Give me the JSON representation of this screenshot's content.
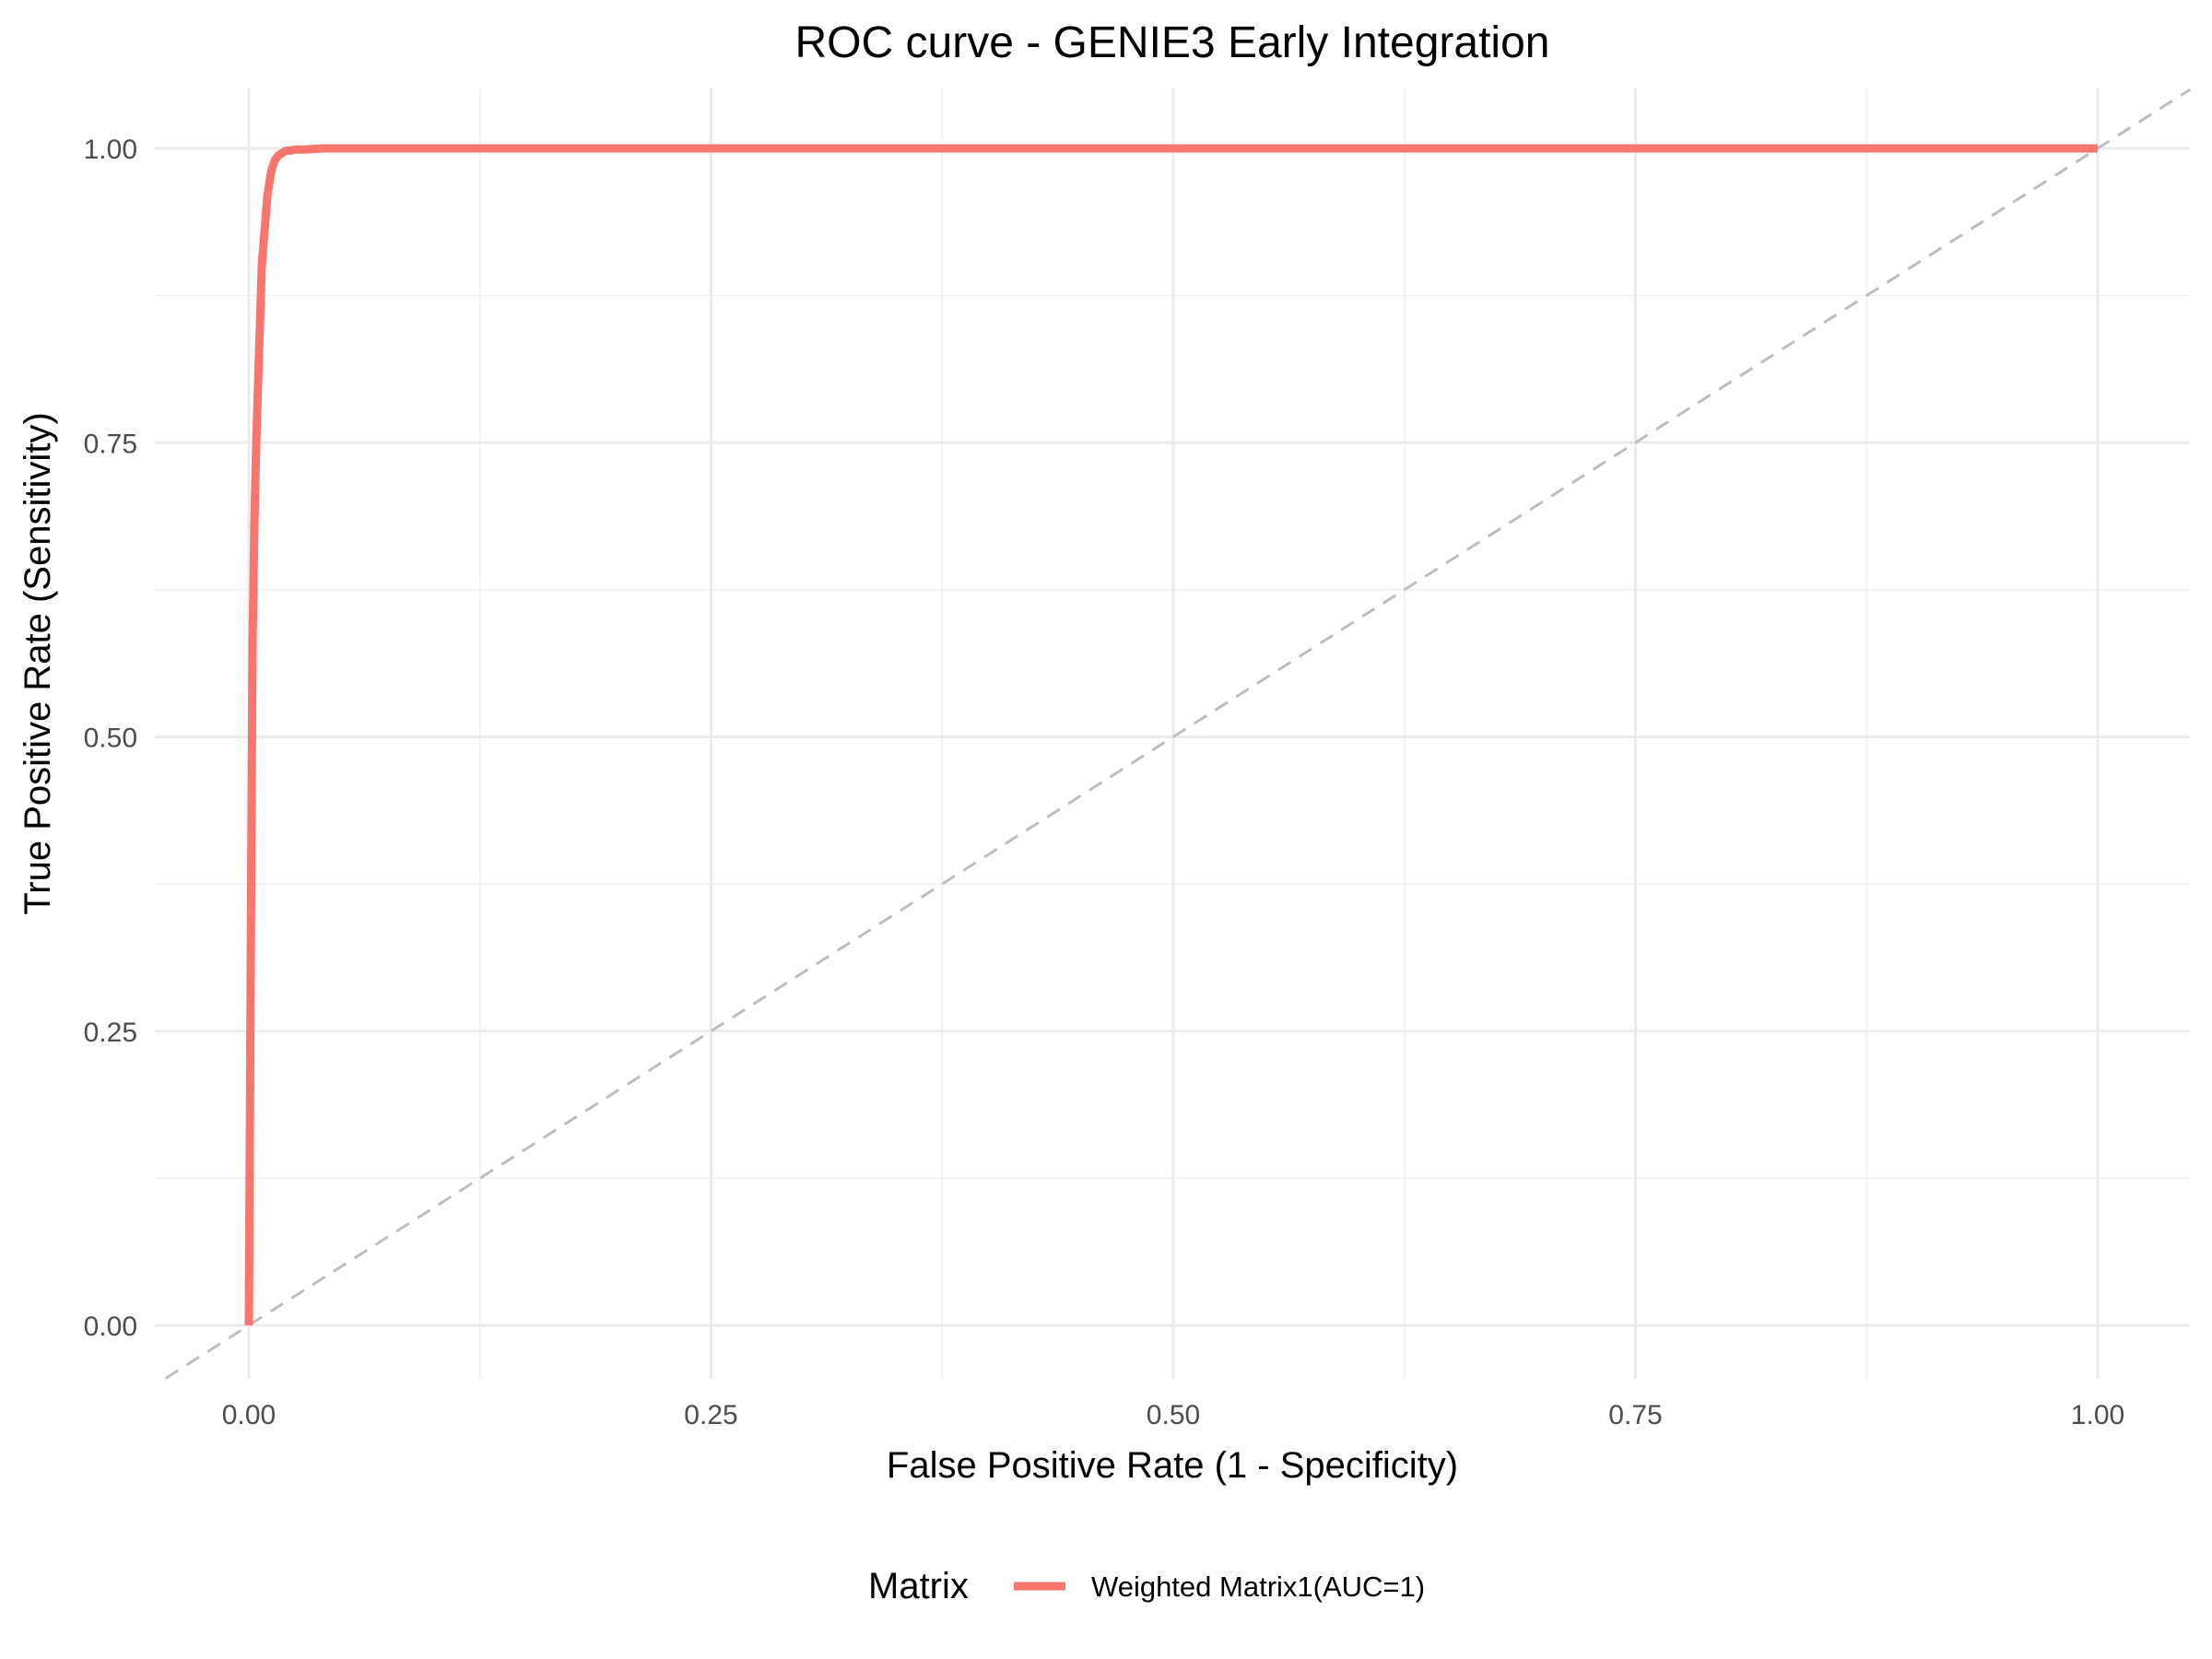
{
  "chart_data": {
    "type": "line",
    "title": "ROC curve - GENIE3 Early Integration",
    "xlabel": "False Positive Rate (1 - Specificity)",
    "ylabel": "True Positive Rate (Sensitivity)",
    "xlim": [
      -0.045,
      1.05
    ],
    "ylim": [
      -0.045,
      1.05
    ],
    "x_ticks": [
      0,
      0.25,
      0.5,
      0.75,
      1
    ],
    "x_tick_labels": [
      "0.00",
      "0.25",
      "0.50",
      "0.75",
      "1.00"
    ],
    "y_ticks": [
      0,
      0.25,
      0.5,
      0.75,
      1
    ],
    "y_tick_labels": [
      "0.00",
      "0.25",
      "0.50",
      "0.75",
      "1.00"
    ],
    "grid": true,
    "legend": {
      "position": "bottom",
      "title": "Matrix"
    },
    "series": [
      {
        "name": "Weighted Matrix1(AUC=1)",
        "color": "#f8766d",
        "x": [
          0,
          0.0005,
          0.001,
          0.0015,
          0.002,
          0.003,
          0.004,
          0.005,
          0.006,
          0.007,
          0.008,
          0.009,
          0.01,
          0.011,
          0.012,
          0.014,
          0.016,
          0.018,
          0.02,
          0.022,
          0.025,
          0.03,
          0.035,
          0.04,
          0.045,
          1
        ],
        "y": [
          0,
          0.15,
          0.3,
          0.45,
          0.58,
          0.68,
          0.75,
          0.8,
          0.85,
          0.9,
          0.92,
          0.94,
          0.96,
          0.97,
          0.98,
          0.99,
          0.994,
          0.996,
          0.998,
          0.998,
          0.999,
          0.999,
          0.9995,
          1,
          1,
          1
        ]
      },
      {
        "name": "",
        "color": "#bebebe",
        "dashed": true,
        "x": [
          -0.045,
          1.05
        ],
        "y": [
          -0.045,
          1.05
        ]
      }
    ]
  }
}
